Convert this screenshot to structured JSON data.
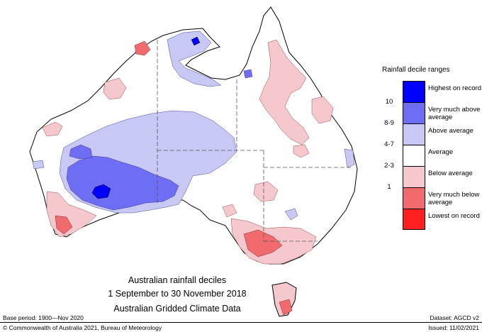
{
  "legend": {
    "title": "Rainfall decile ranges",
    "entries": [
      {
        "label": "Highest on record",
        "color": "#0000ff"
      },
      {
        "label": "Very much above average",
        "color": "#6e6ef5"
      },
      {
        "label": "Above average",
        "color": "#c8c8f5"
      },
      {
        "label": "Average",
        "color": "#ffffff"
      },
      {
        "label": "Below average",
        "color": "#f5c8cd"
      },
      {
        "label": "Very much below average",
        "color": "#f06a6e"
      },
      {
        "label": "Lowest on record",
        "color": "#ff2020"
      }
    ],
    "ticks": [
      "10",
      "8-9",
      "4-7",
      "2-3",
      "1"
    ]
  },
  "caption": {
    "line1": "Australian rainfall deciles",
    "line2": "1 September to 30 November 2018",
    "line3": "Australian Gridded Climate Data"
  },
  "footer": {
    "base_period": "Base period: 1900—Nov 2020",
    "dataset": "Dataset: AGCD v2",
    "copyright": "© Commonwealth of Australia 2021, Bureau of Meteorology",
    "issued": "Issued: 11/02/2021"
  },
  "colors": {
    "coast": "#000000",
    "border": "#555555"
  }
}
